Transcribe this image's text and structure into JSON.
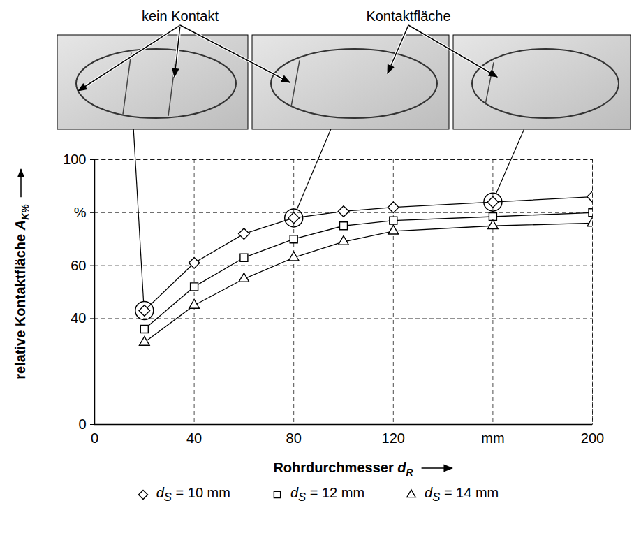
{
  "chart_data": {
    "type": "line",
    "x_label": "Rohrdurchmesser dR",
    "y_label": "relative Kontaktfläche AK%",
    "x": [
      20,
      40,
      60,
      80,
      100,
      120,
      160,
      200
    ],
    "series": [
      {
        "name": "dS = 10 mm",
        "color": "#000000",
        "marker": "diamond",
        "values": [
          43,
          61,
          72,
          78,
          80.5,
          82,
          84,
          86
        ]
      },
      {
        "name": "dS = 12 mm",
        "color": "#000000",
        "marker": "square",
        "values": [
          36,
          52,
          63,
          70,
          75,
          77,
          78.5,
          80
        ]
      },
      {
        "name": "dS = 14 mm",
        "color": "#000000",
        "marker": "triangle",
        "values": [
          31,
          45,
          55,
          63,
          69,
          73,
          75,
          76
        ]
      }
    ],
    "xlim": [
      0,
      200
    ],
    "xticks": [
      0,
      40,
      80,
      120,
      {
        "value": 160,
        "label": "mm"
      },
      200
    ],
    "ylim": [
      0,
      100
    ],
    "yticks": [
      0,
      40,
      60,
      {
        "value": 80,
        "label": "%"
      },
      100
    ],
    "grid": true,
    "legend": "bottom",
    "annotations": [
      {
        "text": "kein Kontakt"
      },
      {
        "text": "Kontaktfläche"
      }
    ],
    "marked_points": {
      "series": "dS = 10 mm",
      "x": [
        20,
        80,
        160
      ]
    }
  }
}
